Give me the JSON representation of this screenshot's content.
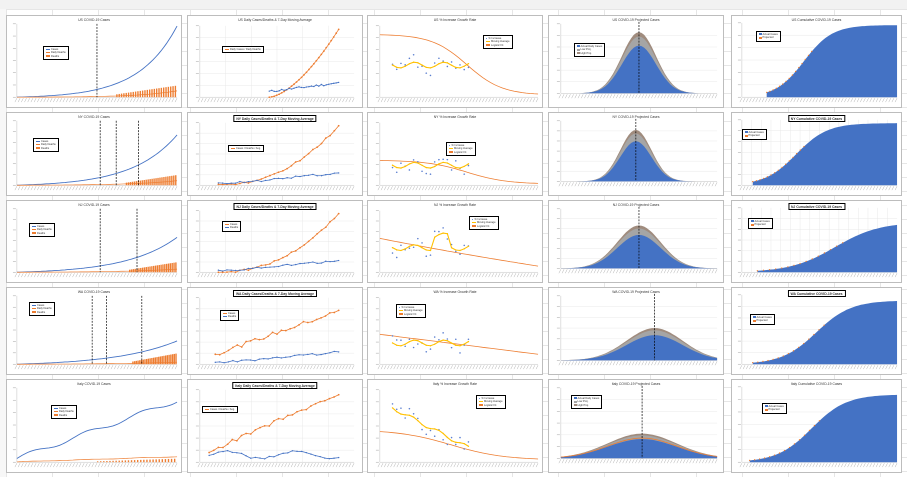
{
  "colors": {
    "blue": "#4472c4",
    "orange": "#ed7d31",
    "gray": "#a5a5a5",
    "yellow": "#ffc000"
  },
  "rows": [
    {
      "region": "US",
      "cumulative": {
        "title": "US COVID-19 Cases",
        "legend": [
          "Cases",
          "Daily Deaths",
          "Deaths"
        ]
      },
      "daily": {
        "title": "US Daily Cases/Deaths & 7-Day Moving Average",
        "subtitle": "",
        "legend": [
          "Daily Cases / Daily Deaths"
        ]
      },
      "growth": {
        "title": "US % Increase Growth Rate",
        "legend": [
          "% Increase",
          "Moving Average",
          "Logistic Fit"
        ]
      },
      "projected": {
        "title": "US COVID-19 Projected Cases",
        "legend": [
          "Actual Daily Cases",
          "Low Proj.",
          "High Proj."
        ]
      },
      "total": {
        "title": "US Cumulative COVID-19 Cases",
        "legend": [
          "Actual Cases",
          "Projected"
        ]
      }
    },
    {
      "region": "NY",
      "cumulative": {
        "title": "NY COVID-19 Cases",
        "legend": [
          "Cases",
          "Daily Deaths",
          "Deaths"
        ]
      },
      "daily": {
        "title": "NY Daily Cases/Deaths & 7-Day Moving Average",
        "subtitle": "7-Day Moving Average",
        "legend": [
          "Cases / Deaths / Avg."
        ]
      },
      "growth": {
        "title": "NY % Increase Growth Rate",
        "legend": [
          "% Increase",
          "Moving Average",
          "Logistic Fit"
        ]
      },
      "projected": {
        "title": "NY COVID-19 Projected Cases",
        "legend": []
      },
      "total": {
        "title": "NY Cumulative COVID-19 Cases",
        "legend": [
          "Actual Cases",
          "Projected"
        ]
      }
    },
    {
      "region": "NJ",
      "cumulative": {
        "title": "NJ COVID-19 Cases",
        "legend": [
          "Cases",
          "Daily Deaths",
          "Deaths"
        ]
      },
      "daily": {
        "title": "NJ Daily Cases/Deaths & 7-Day Moving Average",
        "subtitle": "7-Day Moving Average",
        "legend": [
          "Cases",
          "Deaths"
        ]
      },
      "growth": {
        "title": "NJ % Increase Growth Rate",
        "legend": [
          "% Increase",
          "Moving Average",
          "Logistic Fit"
        ]
      },
      "projected": {
        "title": "NJ COVID-19 Projected Cases",
        "legend": []
      },
      "total": {
        "title": "NJ Cumulative COVID-19 Cases",
        "legend": [
          "Actual Cases",
          "Projected"
        ]
      }
    },
    {
      "region": "WA",
      "cumulative": {
        "title": "WA COVID-19 Cases",
        "legend": [
          "Cases",
          "Daily Deaths",
          "Deaths"
        ]
      },
      "daily": {
        "title": "WA Daily Cases/Deaths & 7-Day Moving Average",
        "subtitle": "7-Day Moving Average",
        "legend": [
          "Cases",
          "Deaths"
        ]
      },
      "growth": {
        "title": "WA % Increase Growth Rate",
        "legend": [
          "% Increase",
          "Moving Average",
          "Logistic Fit"
        ]
      },
      "projected": {
        "title": "WA COVID-19 Projected Cases",
        "legend": []
      },
      "total": {
        "title": "WA Cumulative COVID-19 Cases",
        "legend": [
          "Actual Cases",
          "Projected"
        ]
      }
    },
    {
      "region": "Italy",
      "cumulative": {
        "title": "Italy COVID-19 Cases",
        "legend": [
          "Cases",
          "Daily Deaths",
          "Deaths"
        ]
      },
      "daily": {
        "title": "Italy Daily Cases/Deaths & 7-Day Moving Average",
        "subtitle": "7-Day Moving Average",
        "legend": [
          "Cases / Deaths / Avg."
        ]
      },
      "growth": {
        "title": "Italy % Increase Growth Rate",
        "legend": [
          "% Increase",
          "Moving Average",
          "Logistic Fit"
        ]
      },
      "projected": {
        "title": "Italy COVID-19 Projected Cases",
        "legend": [
          "Actual Daily Cases",
          "Low Proj.",
          "High Proj."
        ]
      },
      "total": {
        "title": "Italy Cumulative COVID-19 Cases",
        "legend": [
          "Actual Cases",
          "Projected"
        ]
      }
    }
  ]
}
